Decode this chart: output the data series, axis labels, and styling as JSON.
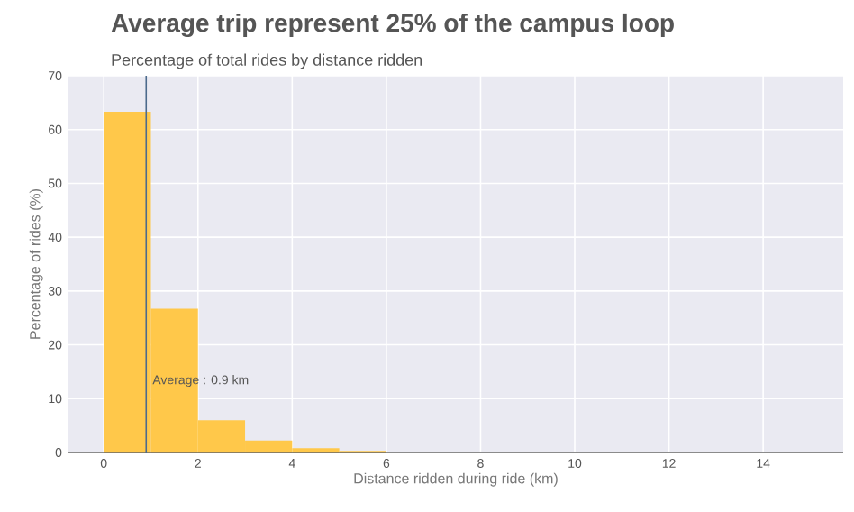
{
  "chart_data": {
    "type": "histogram",
    "title": "Average trip represent 25% of the campus loop",
    "subtitle": "Percentage of total rides by distance ridden",
    "xlabel": "Distance ridden during ride (km)",
    "ylabel": "Percentage of rides (%)",
    "bins": [
      0,
      1,
      2,
      3,
      4,
      5,
      6
    ],
    "values": [
      63.3,
      26.7,
      6.0,
      2.2,
      0.8,
      0.3
    ],
    "color": "#ffc84a",
    "xlim": [
      -0.75,
      15.7
    ],
    "ylim": [
      0,
      70
    ],
    "xticks": [
      0,
      2,
      4,
      6,
      8,
      10,
      12,
      14
    ],
    "yticks": [
      0,
      10,
      20,
      30,
      40,
      50,
      60,
      70
    ],
    "grid": true,
    "ref_lines": [
      {
        "axis": "x",
        "value": 0.9,
        "label": "Average : 0.9 km",
        "color": "#4c6a8c"
      }
    ]
  }
}
